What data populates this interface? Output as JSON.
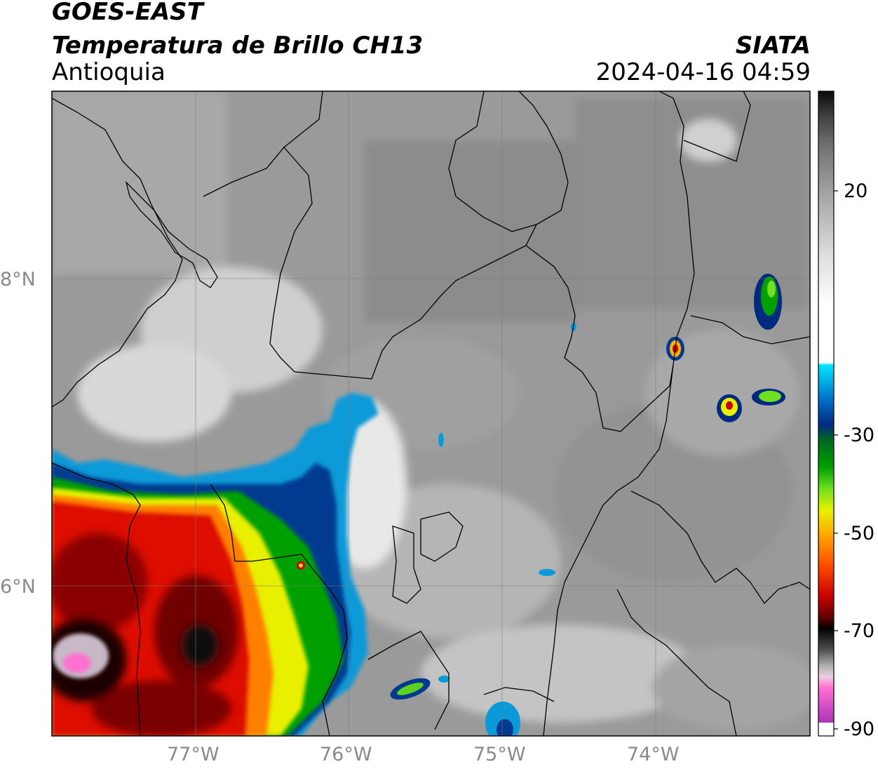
{
  "header": {
    "title_line1": "GOES-EAST",
    "title_line2": "Temperatura de Brillo CH13",
    "region": "Antioquia",
    "organization": "SIATA",
    "timestamp": "2024-04-16 04:59"
  },
  "map": {
    "lat_labels": [
      "8°N",
      "6°N"
    ],
    "lon_labels": [
      "77°W",
      "76°W",
      "75°W",
      "74°W"
    ]
  },
  "colorbar": {
    "tick_labels": [
      "20",
      "-30",
      "-50",
      "-70",
      "-90"
    ],
    "stops": [
      {
        "v": 30,
        "color": "#0a0a0a"
      },
      {
        "v": 25,
        "color": "#444444"
      },
      {
        "v": 20,
        "color": "#707070"
      },
      {
        "v": 10,
        "color": "#a8a8a8"
      },
      {
        "v": 0,
        "color": "#dcdcdc"
      },
      {
        "v": -10,
        "color": "#ffffff"
      },
      {
        "v": -20.5,
        "color": "#ffffff"
      },
      {
        "v": -21,
        "color": "#00e5ff"
      },
      {
        "v": -27,
        "color": "#0077cc"
      },
      {
        "v": -32,
        "color": "#002a80"
      },
      {
        "v": -35,
        "color": "#006a1e"
      },
      {
        "v": -40,
        "color": "#00a000"
      },
      {
        "v": -44,
        "color": "#70e020"
      },
      {
        "v": -48,
        "color": "#e8f000"
      },
      {
        "v": -52,
        "color": "#ffb000"
      },
      {
        "v": -58,
        "color": "#ff5000"
      },
      {
        "v": -64,
        "color": "#cc0000"
      },
      {
        "v": -68,
        "color": "#600000"
      },
      {
        "v": -70,
        "color": "#000000"
      },
      {
        "v": -74,
        "color": "#505050"
      },
      {
        "v": -77,
        "color": "#b0b0b0"
      },
      {
        "v": -79,
        "color": "#e8d0e0"
      },
      {
        "v": -81,
        "color": "#ff70d0"
      },
      {
        "v": -86,
        "color": "#c040c0"
      },
      {
        "v": -89,
        "color": "#9030a0"
      },
      {
        "v": -90,
        "color": "#ffffff"
      }
    ]
  }
}
